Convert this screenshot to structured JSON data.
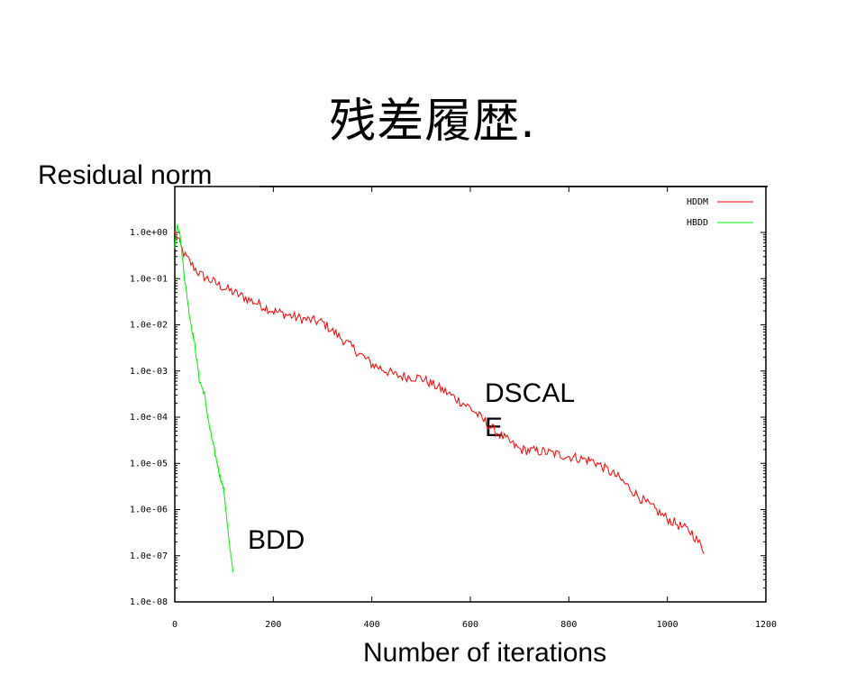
{
  "title": "残差履歴.",
  "ylabel": "Residual norm",
  "xlabel": "Number of iterations",
  "annotations": {
    "dscale": [
      "DSCAL",
      "E"
    ],
    "bdd": "BDD"
  },
  "colors": {
    "HDDM": "#ff0000",
    "HBDD": "#00ee00",
    "axis": "#000000"
  },
  "chart_data": {
    "type": "line",
    "title": "",
    "xlabel": "Number of iterations",
    "ylabel": "Residual norm",
    "xlim": [
      0,
      1200
    ],
    "ylim_log10": [
      -8,
      0.8
    ],
    "yscale": "log",
    "legend_position": "top-right",
    "x_ticks": [
      0,
      200,
      400,
      600,
      800,
      1000,
      1200
    ],
    "x_tick_labels": [
      "0",
      "200",
      "400",
      "600",
      "800",
      "1000",
      "1200"
    ],
    "y_ticks_log10": [
      0,
      -1,
      -2,
      -3,
      -4,
      -5,
      -6,
      -7,
      -8
    ],
    "y_tick_labels": [
      "1.0e+00",
      "1.0e-01",
      "1.0e-02",
      "1.0e-03",
      "1.0e-04",
      "1.0e-05",
      "1.0e-06",
      "1.0e-07",
      "1.0e-08"
    ],
    "series": [
      {
        "name": "HDDM",
        "color": "#ff0000",
        "x": [
          0,
          20,
          50,
          100,
          150,
          200,
          250,
          300,
          350,
          400,
          450,
          500,
          550,
          600,
          650,
          700,
          750,
          800,
          850,
          900,
          950,
          1000,
          1050,
          1075
        ],
        "log10_y": [
          0.0,
          -0.5,
          -0.9,
          -1.2,
          -1.45,
          -1.7,
          -1.85,
          -1.95,
          -2.4,
          -2.85,
          -3.1,
          -3.15,
          -3.45,
          -3.8,
          -4.3,
          -4.7,
          -4.75,
          -4.85,
          -4.95,
          -5.3,
          -5.8,
          -6.2,
          -6.5,
          -6.9
        ]
      },
      {
        "name": "HBDD",
        "color": "#00ee00",
        "x": [
          0,
          5,
          10,
          20,
          30,
          40,
          50,
          60,
          70,
          80,
          90,
          100,
          110,
          118
        ],
        "log10_y": [
          -0.3,
          0.2,
          0.0,
          -1.0,
          -1.8,
          -2.4,
          -3.2,
          -3.5,
          -4.2,
          -4.7,
          -5.2,
          -5.6,
          -6.7,
          -7.3
        ]
      }
    ]
  }
}
